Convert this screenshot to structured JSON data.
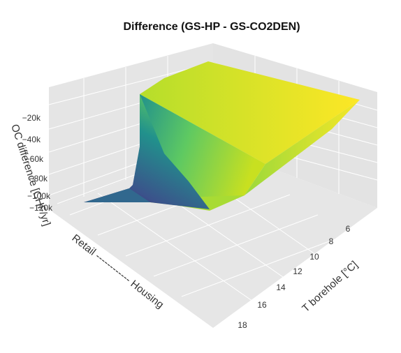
{
  "chart_data": {
    "type": "surface3d",
    "title": "Difference (GS-HP - GS-CO2DEN)",
    "zlabel": "OC difference [CHF/yr]",
    "ylabel": "T borehole [°C]",
    "xlabel": "Retail ------------ Housing",
    "z_ticks": [
      "−20k",
      "−40k",
      "−60k",
      "−80k",
      "−100k",
      "−120k"
    ],
    "z_tick_values": [
      -20000,
      -40000,
      -60000,
      -80000,
      -100000,
      -120000
    ],
    "y_ticks": [
      "6",
      "8",
      "10",
      "12",
      "14",
      "16",
      "18"
    ],
    "y_tick_values": [
      6,
      8,
      10,
      12,
      14,
      16,
      18
    ],
    "zlim": [
      -125000,
      -5000
    ],
    "colorscale": [
      "#440154",
      "#3b528b",
      "#21918c",
      "#5ec962",
      "#fde725"
    ],
    "surface_rows": [
      {
        "t_borehole": 5,
        "values": [
          -5000,
          -5000,
          -5000,
          -5000
        ]
      },
      {
        "t_borehole": 6,
        "values": [
          -90000,
          -40000,
          -30000,
          -8000
        ]
      },
      {
        "t_borehole": 7,
        "values": [
          -110000,
          -60000,
          -40000,
          -25000
        ]
      },
      {
        "t_borehole": 9,
        "values": [
          -118000,
          -95000,
          -50000,
          -32000
        ]
      },
      {
        "t_borehole": 13,
        "values": [
          -120000,
          -110000,
          -75000,
          -45000
        ]
      },
      {
        "t_borehole": 19,
        "values": [
          -120000,
          -115000,
          -105000,
          -62000
        ]
      }
    ]
  }
}
